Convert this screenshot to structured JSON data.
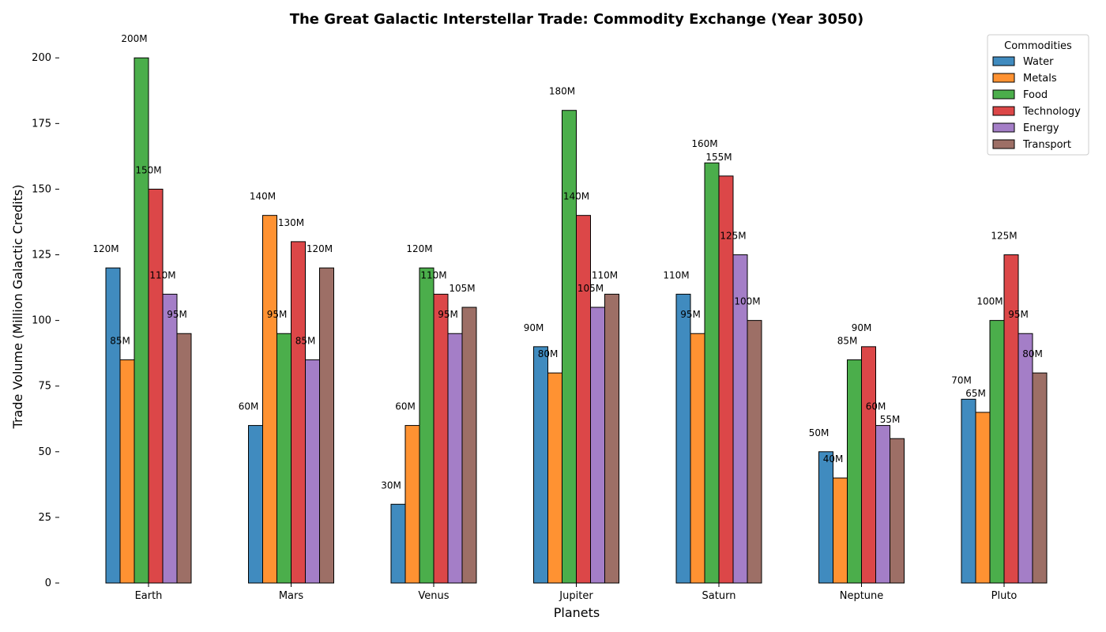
{
  "chart_data": {
    "type": "bar",
    "title": "The Great Galactic Interstellar Trade: Commodity Exchange (Year 3050)",
    "xlabel": "Planets",
    "ylabel": "Trade Volume (Million Galactic Credits)",
    "categories": [
      "Earth",
      "Mars",
      "Venus",
      "Jupiter",
      "Saturn",
      "Neptune",
      "Pluto"
    ],
    "ylim": [
      0,
      210
    ],
    "yticks": [
      0,
      25,
      50,
      75,
      100,
      125,
      150,
      175,
      200
    ],
    "value_suffix": "M",
    "grid": false,
    "legend": {
      "title": "Commodities",
      "placement": "top-right"
    },
    "series": [
      {
        "name": "Water",
        "color": "#1f77b4",
        "values": [
          120,
          60,
          30,
          90,
          110,
          50,
          70
        ]
      },
      {
        "name": "Metals",
        "color": "#ff7f0e",
        "values": [
          85,
          140,
          60,
          80,
          95,
          40,
          65
        ]
      },
      {
        "name": "Food",
        "color": "#2ca02c",
        "values": [
          200,
          95,
          120,
          180,
          160,
          85,
          100
        ]
      },
      {
        "name": "Technology",
        "color": "#d62728",
        "values": [
          150,
          130,
          110,
          140,
          155,
          90,
          125
        ]
      },
      {
        "name": "Energy",
        "color": "#9467bd",
        "values": [
          110,
          85,
          95,
          105,
          125,
          60,
          95
        ]
      },
      {
        "name": "Transport",
        "color": "#8c564b",
        "values": [
          95,
          120,
          105,
          110,
          100,
          55,
          80
        ]
      }
    ]
  }
}
